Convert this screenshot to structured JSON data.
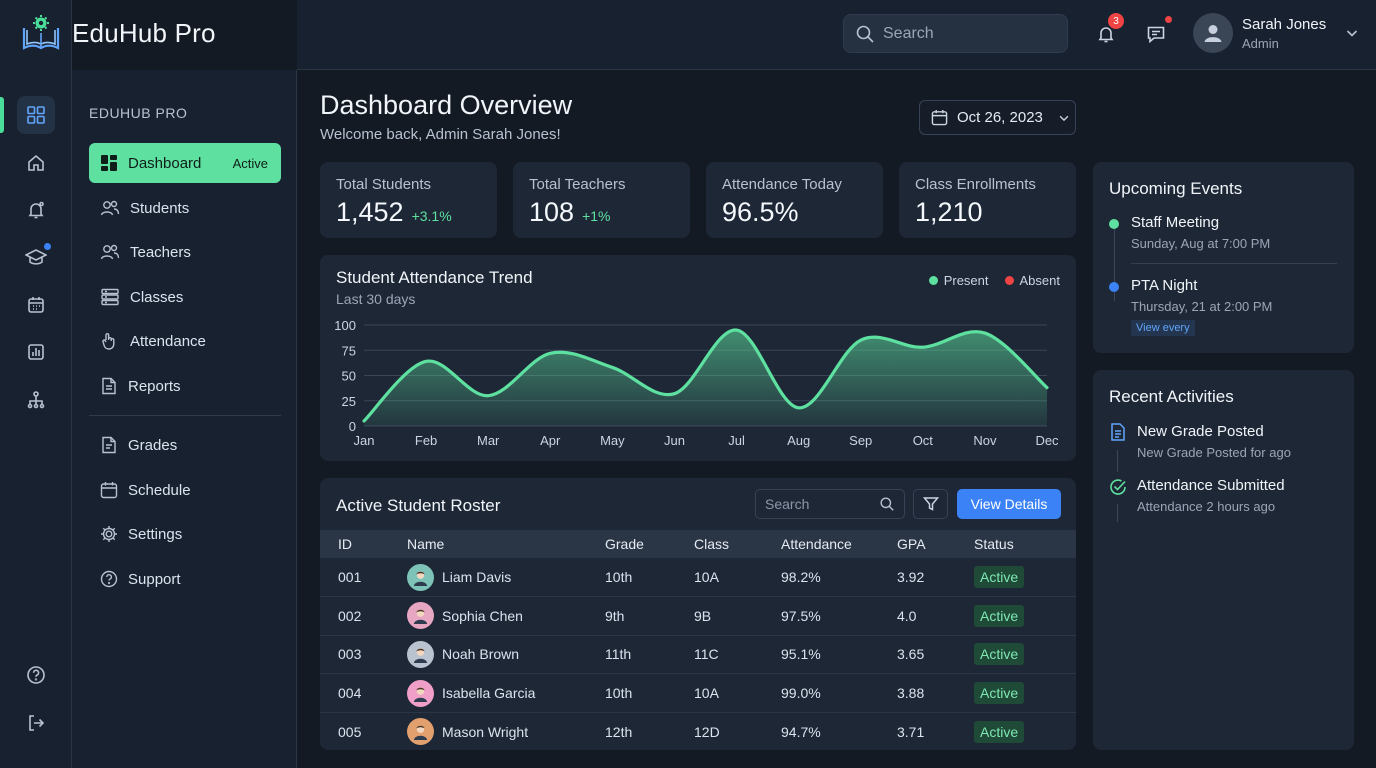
{
  "app": {
    "title": "EduHub Pro"
  },
  "rail": {
    "icons": [
      "dashboard-grid-icon",
      "home-icon",
      "alert-bell-icon",
      "graduation-cap-icon",
      "calendar-icon",
      "report-chart-icon",
      "hierarchy-icon",
      "help-icon",
      "logout-icon"
    ],
    "accent": "#4ade9a"
  },
  "nav": {
    "section": "EDUHUB PRO",
    "items": [
      {
        "label": "Dashboard",
        "badge": "Active",
        "icon": "dashboard-icon"
      },
      {
        "label": "Students",
        "icon": "students-icon"
      },
      {
        "label": "Teachers",
        "icon": "teachers-icon"
      },
      {
        "label": "Classes",
        "icon": "classes-icon"
      },
      {
        "label": "Attendance",
        "icon": "attendance-icon"
      },
      {
        "label": "Reports",
        "icon": "reports-icon"
      },
      {
        "label": "Grades",
        "icon": "grades-icon"
      },
      {
        "label": "Schedule",
        "icon": "schedule-icon"
      },
      {
        "label": "Settings",
        "icon": "settings-icon"
      },
      {
        "label": "Support",
        "icon": "support-icon"
      }
    ]
  },
  "topbar": {
    "search_placeholder": "Search",
    "notification_count": "3",
    "user": {
      "name": "Sarah Jones",
      "role": "Admin"
    }
  },
  "header": {
    "title": "Dashboard Overview",
    "subtitle": "Welcome back, Admin Sarah Jones!",
    "date": "Oct 26, 2023"
  },
  "stats": [
    {
      "label": "Total Students",
      "value": "1,452",
      "delta": "+3.1%"
    },
    {
      "label": "Total Teachers",
      "value": "108",
      "delta": "+1%"
    },
    {
      "label": "Attendance Today",
      "value": "96.5%",
      "delta": ""
    },
    {
      "label": "Class Enrollments",
      "value": "1,210",
      "delta": ""
    }
  ],
  "chart_data": {
    "type": "area",
    "title": "Student Attendance Trend",
    "subtitle": "Last 30 days",
    "categories": [
      "Jan",
      "Feb",
      "Mar",
      "Apr",
      "May",
      "Jun",
      "Jul",
      "Aug",
      "Sep",
      "Oct",
      "Nov",
      "Dec"
    ],
    "series": [
      {
        "name": "Present",
        "color": "#5ee1a0",
        "values": [
          5,
          64,
          30,
          72,
          58,
          32,
          95,
          18,
          85,
          78,
          92,
          38
        ]
      }
    ],
    "legend": [
      {
        "name": "Present",
        "color": "#5ee1a0"
      },
      {
        "name": "Absent",
        "color": "#ef4444"
      }
    ],
    "yticks": [
      0,
      25,
      50,
      75,
      100
    ],
    "ylim": [
      0,
      100
    ],
    "grid": true,
    "legend_position": "top-right"
  },
  "roster": {
    "title": "Active Student Roster",
    "search_placeholder": "Search",
    "view_button": "View Details",
    "columns": [
      "ID",
      "Name",
      "Grade",
      "Class",
      "Attendance",
      "GPA",
      "Status"
    ],
    "rows": [
      {
        "id": "001",
        "name": "Liam Davis",
        "grade": "10th",
        "class": "10A",
        "attendance": "98.2%",
        "gpa": "3.92",
        "status": "Active",
        "avatar_color": "#7dc3b8"
      },
      {
        "id": "002",
        "name": "Sophia Chen",
        "grade": "9th",
        "class": "9B",
        "attendance": "97.5%",
        "gpa": "4.0",
        "status": "Active",
        "avatar_color": "#e7a7c3"
      },
      {
        "id": "003",
        "name": "Noah Brown",
        "grade": "11th",
        "class": "11C",
        "attendance": "95.1%",
        "gpa": "3.65",
        "status": "Active",
        "avatar_color": "#b9c2cf"
      },
      {
        "id": "004",
        "name": "Isabella Garcia",
        "grade": "10th",
        "class": "10A",
        "attendance": "99.0%",
        "gpa": "3.88",
        "status": "Active",
        "avatar_color": "#f0a0c8"
      },
      {
        "id": "005",
        "name": "Mason Wright",
        "grade": "12th",
        "class": "12D",
        "attendance": "94.7%",
        "gpa": "3.71",
        "status": "Active",
        "avatar_color": "#e3a06f"
      }
    ]
  },
  "events": {
    "title": "Upcoming Events",
    "items": [
      {
        "title": "Staff Meeting",
        "time": "Sunday, Aug at 7:00 PM",
        "color": "#5ee1a0"
      },
      {
        "title": "PTA Night",
        "time": "Thursday, 21 at 2:00 PM",
        "color": "#3b82f6"
      }
    ],
    "view_link": "View every"
  },
  "activities": {
    "title": "Recent Activities",
    "items": [
      {
        "title": "New Grade Posted",
        "sub": "New Grade Posted for ago",
        "icon": "document-icon"
      },
      {
        "title": "Attendance Submitted",
        "sub": "Attendance 2 hours ago",
        "icon": "check-circle-icon"
      }
    ]
  }
}
